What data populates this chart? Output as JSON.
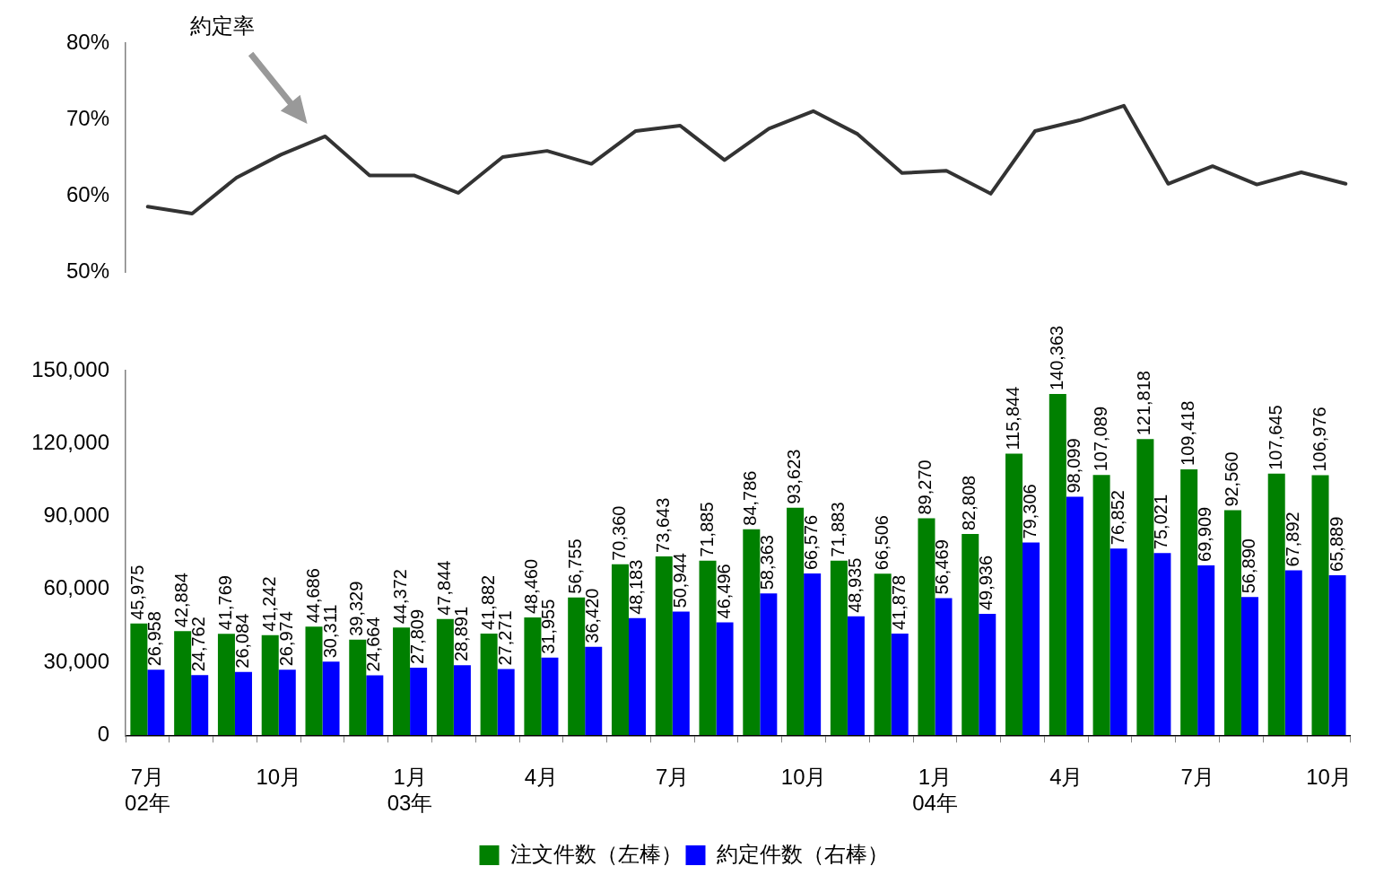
{
  "chart_data": [
    {
      "type": "line",
      "categories": [
        null,
        null,
        null,
        null,
        null,
        null,
        null,
        null,
        null,
        null,
        null,
        null,
        null,
        null,
        null,
        null,
        null,
        null,
        null,
        null,
        null,
        null,
        null,
        null,
        null,
        null,
        null,
        null
      ],
      "series": [
        {
          "name": "約定率",
          "color": "#333333",
          "values": [
            58.6,
            57.7,
            62.4,
            65.4,
            67.8,
            62.7,
            62.7,
            60.4,
            65.1,
            65.9,
            64.2,
            68.5,
            69.2,
            64.7,
            68.8,
            71.1,
            68.1,
            63.0,
            63.3,
            60.3,
            68.5,
            69.9,
            71.8,
            61.6,
            63.9,
            61.5,
            63.1,
            61.6
          ]
        }
      ],
      "ylim": [
        50,
        80
      ],
      "yticks": [
        {
          "value": 50,
          "label": "50%"
        },
        {
          "value": 60,
          "label": "60%"
        },
        {
          "value": 70,
          "label": "70%"
        },
        {
          "value": 80,
          "label": "80%"
        }
      ],
      "tick_labels": "y",
      "marker": "none",
      "line_style": "solid"
    },
    {
      "type": "bar",
      "categories": [
        "7月\n02年",
        null,
        null,
        "10月",
        null,
        null,
        "1月\n03年",
        null,
        null,
        "4月",
        null,
        null,
        "7月",
        null,
        null,
        "10月",
        null,
        null,
        "1月\n04年",
        null,
        null,
        "4月",
        null,
        null,
        "7月",
        null,
        null,
        "10月"
      ],
      "series": [
        {
          "name": "注文件数（左棒）",
          "color": "#008000",
          "values": [
            45975,
            42884,
            41769,
            41242,
            44686,
            39329,
            44372,
            47844,
            41882,
            48460,
            56755,
            70360,
            73643,
            71885,
            84786,
            93623,
            71883,
            66506,
            89270,
            82808,
            115844,
            140363,
            107089,
            121818,
            109418,
            92560,
            107645,
            106976
          ],
          "value_labels": [
            "45,975",
            "42,884",
            "41,769",
            "41,242",
            "44,686",
            "39,329",
            "44,372",
            "47,844",
            "41,882",
            "48,460",
            "56,755",
            "70,360",
            "73,643",
            "71,885",
            "84,786",
            "93,623",
            "71,883",
            "66,506",
            "89,270",
            "82,808",
            "115,844",
            "140,363",
            "107,089",
            "121,818",
            "109,418",
            "92,560",
            "107,645",
            "106,976"
          ]
        },
        {
          "name": "約定件数（右棒）",
          "color": "#0000ff",
          "values": [
            26958,
            24762,
            26084,
            26974,
            30311,
            24664,
            27809,
            28891,
            27271,
            31955,
            36420,
            48183,
            50944,
            46496,
            58363,
            66576,
            48935,
            41878,
            56469,
            49936,
            79306,
            98099,
            76852,
            75021,
            69909,
            56890,
            67892,
            65889
          ],
          "value_labels": [
            "26,958",
            "24,762",
            "26,084",
            "26,974",
            "30,311",
            "24,664",
            "27,809",
            "28,891",
            "27,271",
            "31,955",
            "36,420",
            "48,183",
            "50,944",
            "46,496",
            "58,363",
            "66,576",
            "48,935",
            "41,878",
            "56,469",
            "49,936",
            "79,306",
            "98,099",
            "76,852",
            "75,021",
            "69,909",
            "56,890",
            "67,892",
            "65,889"
          ]
        }
      ],
      "ylim": [
        0,
        150000
      ],
      "yticks": [
        {
          "value": 0,
          "label": "0"
        },
        {
          "value": 30000,
          "label": "30,000"
        },
        {
          "value": 60000,
          "label": "60,000"
        },
        {
          "value": 90000,
          "label": "90,000"
        },
        {
          "value": 120000,
          "label": "120,000"
        },
        {
          "value": 150000,
          "label": "150,000"
        }
      ],
      "legend": "bottom"
    }
  ]
}
